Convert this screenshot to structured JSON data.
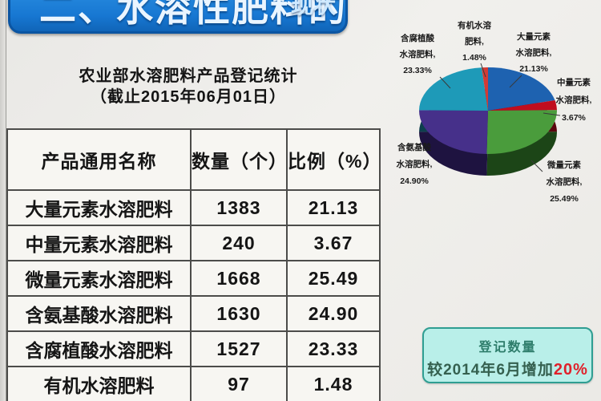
{
  "page": {
    "title": "二、水溶性肥料的登记",
    "title_suffix": "现状",
    "subtitle_line1": "农业部水溶肥料产品登记统计",
    "subtitle_line2": "（截止2015年06月01日）"
  },
  "table": {
    "headers": [
      "产品通用名称",
      "数量（个）",
      "比例（%）"
    ],
    "rows": [
      {
        "name": "大量元素水溶肥料",
        "count": "1383",
        "ratio": "21.13"
      },
      {
        "name": "中量元素水溶肥料",
        "count": "240",
        "ratio": "3.67"
      },
      {
        "name": "微量元素水溶肥料",
        "count": "1668",
        "ratio": "25.49"
      },
      {
        "name": "含氨基酸水溶肥料",
        "count": "1630",
        "ratio": "24.90"
      },
      {
        "name": "含腐植酸水溶肥料",
        "count": "1527",
        "ratio": "23.33"
      },
      {
        "name": "有机水溶肥料",
        "count": "97",
        "ratio": "1.48"
      }
    ]
  },
  "chart_data": {
    "type": "pie",
    "style": "3d",
    "title": "农业部水溶肥料产品登记统计（截止2015年06月01日）",
    "legend_position": "outside-labels",
    "start_angle_deg": 0,
    "direction": "clockwise",
    "slices": [
      {
        "label": "大量元素水溶肥料",
        "value": 21.13,
        "color": "#1e62b0",
        "dark": "#10294e",
        "l1": "大量元素",
        "l2": "水溶肥料,",
        "pct": "21.13%"
      },
      {
        "label": "中量元素水溶肥料",
        "value": 3.67,
        "color": "#c00d1e",
        "dark": "#5a060e",
        "l1": "中量元素",
        "l2": "水溶肥料,",
        "pct": "3.67%"
      },
      {
        "label": "微量元素水溶肥料",
        "value": 25.49,
        "color": "#4a9c3c",
        "dark": "#1c4517",
        "l1": "微量元素",
        "l2": "水溶肥料,",
        "pct": "25.49%"
      },
      {
        "label": "含氨基酸水溶肥料",
        "value": 24.9,
        "color": "#46308a",
        "dark": "#1e1340",
        "l1": "含氨基酸",
        "l2": "水溶肥料,",
        "pct": "24.90%"
      },
      {
        "label": "含腐植酸水溶肥料",
        "value": 23.33,
        "color": "#1e9ab8",
        "dark": "#0d3f4d",
        "l1": "含腐植酸",
        "l2": "水溶肥料,",
        "pct": "23.33%"
      },
      {
        "label": "有机水溶肥料",
        "value": 1.48,
        "color": "#d43a34",
        "dark": "#5e1714",
        "l1": "有机水溶",
        "l2": "肥料,",
        "pct": "1.48%"
      }
    ]
  },
  "note_box": {
    "line1": "登记数量",
    "line2_prefix": "较2014年6月增加",
    "line2_highlight": "20%"
  },
  "colors": {
    "title_bar": "#1777d2",
    "title_bar_border": "#0b55a2",
    "note_bg": "#b9efe9",
    "note_border": "#2f9e92",
    "note_highlight": "#e0212b",
    "table_line": "#4c4c4a"
  }
}
